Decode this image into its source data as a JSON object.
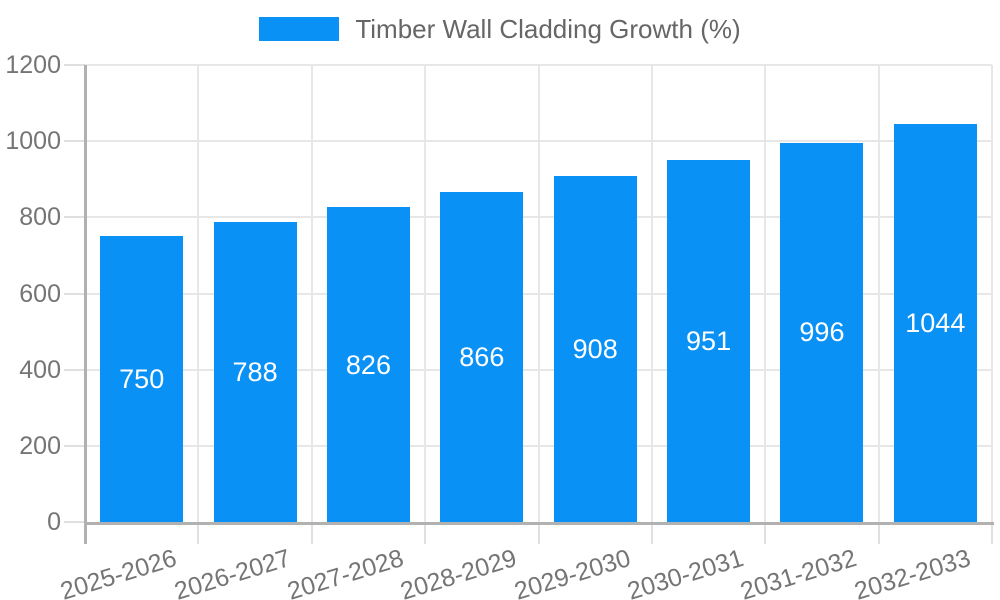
{
  "chart_data": {
    "type": "bar",
    "title": "Timber Wall Cladding Growth (%)",
    "legend": [
      "Timber Wall Cladding Growth (%)"
    ],
    "legend_position": "top",
    "categories": [
      "2025-2026",
      "2026-2027",
      "2027-2028",
      "2028-2029",
      "2029-2030",
      "2030-2031",
      "2031-2032",
      "2032-2033"
    ],
    "values": [
      750,
      788,
      826,
      866,
      908,
      951,
      996,
      1044
    ],
    "value_labels_shown_inside_bars": true,
    "xlabel": "",
    "ylabel": "",
    "ylim": [
      0,
      1200
    ],
    "yticks": [
      0,
      200,
      400,
      600,
      800,
      1000,
      1200
    ],
    "grid": true,
    "colors": {
      "bar": "#0a91f5",
      "value_label": "#ffffff",
      "axis_line": "#b1b1b1",
      "grid_line": "#e7e7e7",
      "tick_line": "#e0e0e0",
      "axis_text": "#757575",
      "legend_text": "#666666",
      "background": "#ffffff"
    }
  }
}
